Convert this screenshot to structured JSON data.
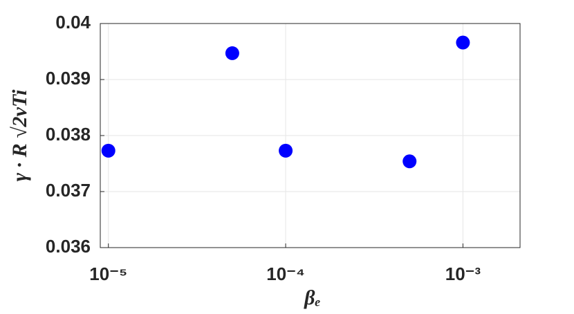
{
  "chart_data": {
    "type": "scatter",
    "xlabel": "βₑ",
    "ylabel": "γ · R √2vTi",
    "x": [
      1e-05,
      5e-05,
      0.0001,
      0.0005,
      0.001
    ],
    "series": [
      {
        "color": "#0000ff",
        "values": [
          0.03773,
          0.03947,
          0.03773,
          0.03754,
          0.03966
        ]
      }
    ],
    "xscale": "log",
    "xlim": [
      9e-06,
      0.0021
    ],
    "xticks": [
      {
        "value": 1e-05,
        "label": "10⁻⁵"
      },
      {
        "value": 0.0001,
        "label": "10⁻⁴"
      },
      {
        "value": 0.001,
        "label": "10⁻³"
      }
    ],
    "ylim": [
      0.036,
      0.04
    ],
    "yticks": [
      0.036,
      0.037,
      0.038,
      0.039,
      0.04
    ],
    "grid": true
  }
}
